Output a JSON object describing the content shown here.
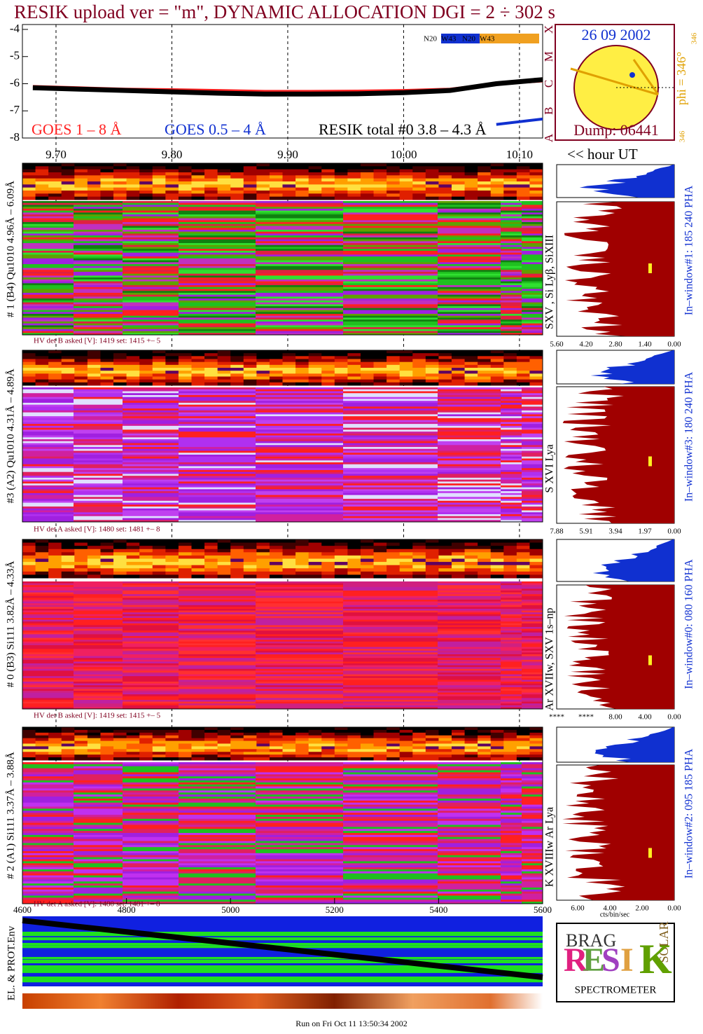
{
  "chart_data": {
    "type": "line",
    "title": "RESIK upload ver = \"m\", DYNAMIC ALLOCATION  DGI =   2 ÷ 302 s",
    "x": [
      9.68,
      9.72,
      9.76,
      9.8,
      9.84,
      9.88,
      9.92,
      9.96,
      10.0,
      10.04,
      10.08,
      10.12
    ],
    "series": [
      {
        "name": "GOES 1 – 8 Å",
        "color": "#ff2020",
        "values": [
          -6.1,
          -6.15,
          -6.2,
          -6.22,
          -6.25,
          -6.28,
          -6.28,
          -6.27,
          -6.25,
          -6.2,
          -6.0,
          -5.9
        ]
      },
      {
        "name": "GOES 0.5 – 4 Å",
        "color": "#1030d0",
        "values": [
          null,
          null,
          null,
          null,
          null,
          null,
          null,
          null,
          null,
          null,
          -7.5,
          -7.3
        ]
      },
      {
        "name": "RESIK total #0  3.8 – 4.3 Å",
        "color": "#000000",
        "values": [
          -6.15,
          -6.2,
          -6.25,
          -6.3,
          -6.35,
          -6.38,
          -6.38,
          -6.37,
          -6.33,
          -6.25,
          -6.0,
          -5.85
        ]
      }
    ],
    "xlim": [
      9.671,
      10.12
    ],
    "xticks": [
      {
        "value": 9.7,
        "label": "9.70"
      },
      {
        "value": 9.8,
        "label": "9.80"
      },
      {
        "value": 9.9,
        "label": "9.90"
      },
      {
        "value": 10,
        "label": "10.00"
      },
      {
        "value": 10.1,
        "label": "10.10"
      }
    ],
    "x_label": "<< hour UT",
    "ylim": [
      -8,
      -3.82
    ],
    "yticks": [
      -4,
      -5,
      -6,
      -7,
      -8
    ],
    "class_ticks": [
      {
        "value": -8,
        "label": "A"
      },
      {
        "value": -7,
        "label": "B"
      },
      {
        "value": -6,
        "label": "C"
      },
      {
        "value": -5,
        "label": "M"
      },
      {
        "value": -4,
        "label": "X"
      }
    ],
    "grid": true,
    "region_labels": [
      "N20",
      "W43",
      "N20",
      "W43"
    ]
  },
  "sun": {
    "date": "26 09 2002",
    "dump": "Dump: 06441",
    "phi": "phi = 346°",
    "phi_small": "346",
    "phi_small_2": "346"
  },
  "panels": [
    {
      "crystal": "# 1 (B4) Qu1010 4.96Å – 6.09Å",
      "lines": "SXV , Si Lyβ, SiXIII",
      "hv": "HV det B asked [V]:  1419 set:  1415  +–   5",
      "window": "In–window#1:  185 240 PHA",
      "hist_labels": [
        "5.60",
        "4.20",
        "2.80",
        "1.40",
        "0.00"
      ]
    },
    {
      "crystal": "#3 (A2) Qu1010  4.31Å – 4.89Å",
      "lines": "S XVI Lya",
      "hv": "HV det A asked [V]:  1480 set:  1481  +–   8",
      "window": "In–window#3:  180 240 PHA",
      "hist_labels": [
        "7.88",
        "5.91",
        "3.94",
        "1.97",
        "0.00"
      ]
    },
    {
      "crystal": "# 0 (B3) Si111  3.82Å – 4.33Å",
      "lines": "Ar XVIIw, SXV 1s–np",
      "hv": "HV det B asked [V]:  1419 set:  1415  +–   5",
      "window": "In–window#0:  080 160 PHA",
      "hist_labels": [
        "****",
        "****",
        "8.00",
        "4.00",
        "0.00"
      ]
    },
    {
      "crystal": "# 2 (A1) Si111  3.37Å – 3.88Å",
      "lines": "K XVIIIw  Ar Lya",
      "hv": "HV det A asked [V]:  1480 set:  1481  +–   8",
      "window": "In–window#2:  095 185 PHA",
      "hist_labels": [
        "6.00",
        "4.00",
        "2.00",
        "0.00"
      ]
    }
  ],
  "sec_axis": {
    "xlim": [
      4600,
      5600
    ],
    "xticks": [
      4600,
      4800,
      5000,
      5200,
      5400,
      5600
    ]
  },
  "hist_unit": "cts/bin/sec",
  "env_label": "EL. & PROT.Env",
  "logo": {
    "letters": [
      "R",
      "E",
      "S",
      "I",
      "K"
    ],
    "solar": "SOLAR",
    "bragg": "BRAG",
    "spectrometer": "SPECTROMETER"
  },
  "footer": "Run on Fri Oct 11 13:50:34 2002"
}
